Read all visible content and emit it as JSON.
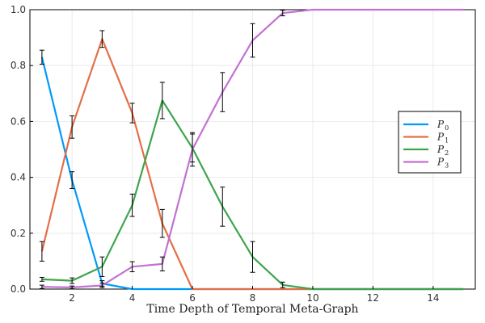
{
  "chart_data": {
    "type": "line",
    "title": "",
    "xlabel": "Time Depth of Temporal Meta-Graph",
    "ylabel": "",
    "xlim": [
      0.6,
      15.4
    ],
    "ylim": [
      0,
      1
    ],
    "xticks": [
      2,
      4,
      6,
      8,
      10,
      12,
      14
    ],
    "yticks": [
      0.0,
      0.2,
      0.4,
      0.6,
      0.8,
      1.0
    ],
    "xtick_labels": [
      "2",
      "4",
      "6",
      "8",
      "10",
      "12",
      "14"
    ],
    "ytick_labels": [
      "0.0",
      "0.2",
      "0.4",
      "0.6",
      "0.8",
      "1.0"
    ],
    "grid": true,
    "legend_position": "right",
    "x": [
      1,
      2,
      3,
      4,
      5,
      6,
      7,
      8,
      9,
      10,
      11,
      12,
      13,
      14,
      15
    ],
    "series": [
      {
        "name": "P",
        "sub": "0",
        "color": "#009AFA",
        "values": [
          0.83,
          0.39,
          0.02,
          0.0,
          0.0,
          0.0,
          0.0,
          0.0,
          0.0,
          0.0,
          0.0,
          0.0,
          0.0,
          0.0,
          0.0
        ],
        "err": [
          0.025,
          0.03,
          0.01,
          0,
          0,
          0,
          0,
          0,
          0,
          0,
          0,
          0,
          0,
          0,
          0
        ]
      },
      {
        "name": "P",
        "sub": "1",
        "color": "#E36F47",
        "values": [
          0.135,
          0.58,
          0.895,
          0.63,
          0.235,
          0.0,
          0.0,
          0.0,
          0.0,
          0.0,
          0.0,
          0.0,
          0.0,
          0.0,
          0.0
        ],
        "err": [
          0.035,
          0.04,
          0.03,
          0.035,
          0.05,
          0,
          0,
          0,
          0,
          0,
          0,
          0,
          0,
          0,
          0
        ]
      },
      {
        "name": "P",
        "sub": "2",
        "color": "#3EA44E",
        "values": [
          0.035,
          0.03,
          0.08,
          0.3,
          0.675,
          0.505,
          0.295,
          0.115,
          0.015,
          0.0,
          0.0,
          0.0,
          0.0,
          0.0,
          0.0
        ],
        "err": [
          0.007,
          0.01,
          0.035,
          0.04,
          0.065,
          0.05,
          0.07,
          0.055,
          0.01,
          0,
          0,
          0,
          0,
          0,
          0
        ]
      },
      {
        "name": "P",
        "sub": "3",
        "color": "#C271D2",
        "values": [
          0.008,
          0.006,
          0.013,
          0.08,
          0.09,
          0.5,
          0.705,
          0.89,
          0.988,
          1.0,
          1.0,
          1.0,
          1.0,
          1.0,
          1.0
        ],
        "err": [
          0.006,
          0.005,
          0.008,
          0.018,
          0.025,
          0.06,
          0.07,
          0.06,
          0.01,
          0,
          0,
          0,
          0,
          0,
          0
        ]
      }
    ]
  }
}
